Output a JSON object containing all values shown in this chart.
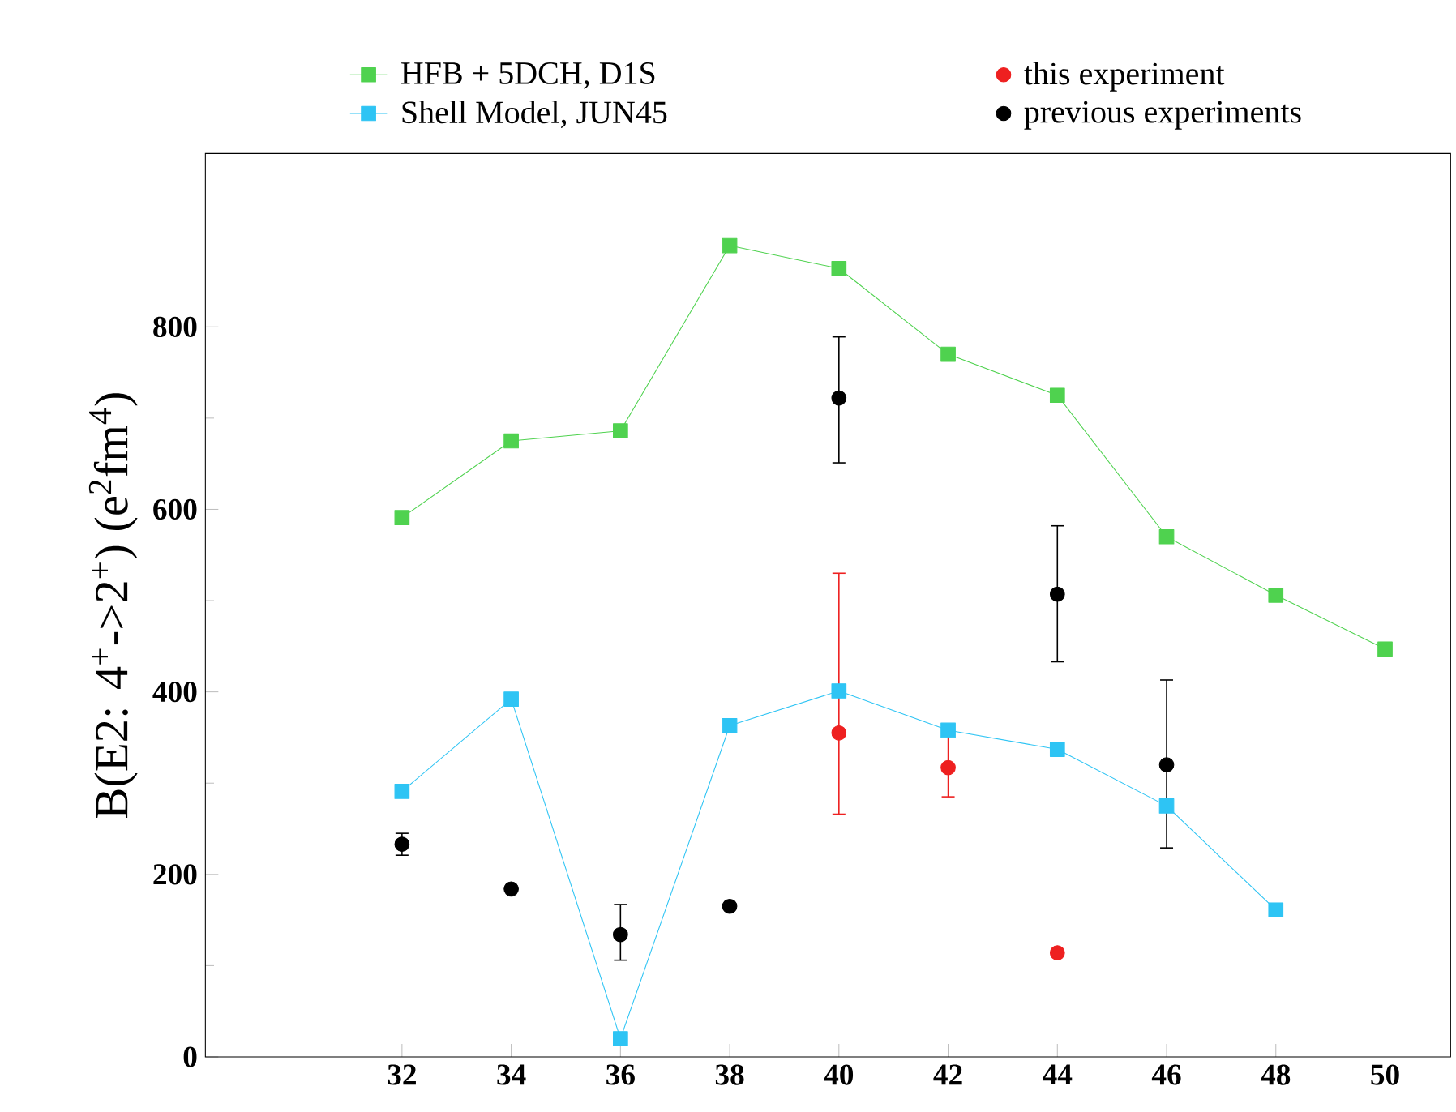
{
  "chart_data": {
    "type": "line",
    "ylabel": "B(E2: 4$^{+}$->2$^{+}$) (e$^{2}$fm$^{4}$)",
    "xlim": [
      28.4,
      51.2
    ],
    "ylim": [
      0,
      990
    ],
    "xticks": [
      32,
      34,
      36,
      38,
      40,
      42,
      44,
      46,
      48,
      50
    ],
    "yticks": [
      0,
      200,
      400,
      600,
      800
    ],
    "legend": "top",
    "grid": false,
    "series": [
      {
        "name": "HFB + 5DCH, D1S",
        "marker": "square",
        "color": "#4fd24f",
        "x": [
          32,
          34,
          36,
          38,
          40,
          42,
          44,
          46,
          48,
          50
        ],
        "values": [
          591,
          675,
          686,
          889,
          864,
          770,
          725,
          570,
          506,
          447
        ]
      },
      {
        "name": "Shell Model, JUN45",
        "marker": "square",
        "color": "#2ec4f4",
        "x": [
          32,
          34,
          36,
          38,
          40,
          42,
          44,
          46,
          48
        ],
        "values": [
          291,
          392,
          20,
          363,
          401,
          358,
          337,
          275,
          161
        ]
      },
      {
        "name": "this experiment",
        "type": "scatter",
        "marker": "circle",
        "color": "#ee2020",
        "x": [
          40,
          42,
          44
        ],
        "values": [
          355,
          317,
          114
        ],
        "errors": [
          [
            266,
            530
          ],
          [
            285,
            362
          ],
          null
        ]
      },
      {
        "name": "previous experiments",
        "type": "scatter",
        "marker": "circle",
        "color": "#000000",
        "x": [
          32,
          34,
          36,
          38,
          40,
          44,
          46
        ],
        "values": [
          233,
          184,
          134,
          165,
          722,
          507,
          320
        ],
        "errors": [
          12,
          null,
          [
            106,
            167
          ],
          null,
          [
            651,
            789
          ],
          [
            433,
            582
          ],
          [
            229,
            413
          ]
        ]
      }
    ]
  }
}
